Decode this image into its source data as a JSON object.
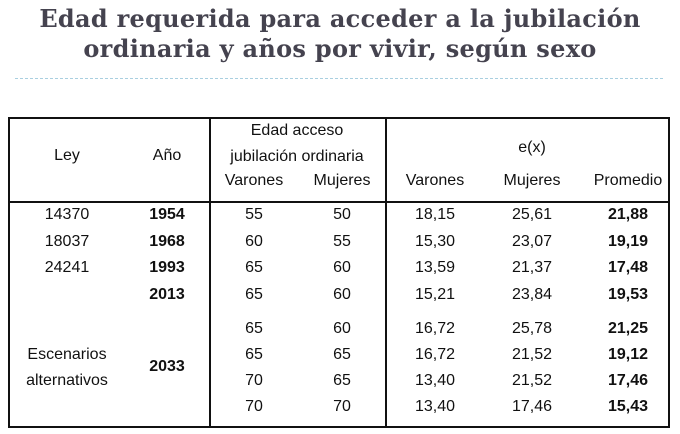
{
  "title": {
    "line1": "Edad requerida para acceder a la jubilación",
    "line2": "ordinaria y años por vivir, según sexo"
  },
  "header": {
    "ley": "Ley",
    "anio": "Año",
    "edad_line1": "Edad acceso",
    "edad_line2": "jubilación ordinaria",
    "edad_varones": "Varones",
    "edad_mujeres": "Mujeres",
    "ex": "e(x)",
    "ex_varones": "Varones",
    "ex_mujeres": "Mujeres",
    "ex_promedio": "Promedio"
  },
  "rows": [
    {
      "ley": "14370",
      "anio": "1954",
      "ev": "55",
      "em": "50",
      "xv": "18,15",
      "xm": "25,61",
      "xp": "21,88"
    },
    {
      "ley": "18037",
      "anio": "1968",
      "ev": "60",
      "em": "55",
      "xv": "15,30",
      "xm": "23,07",
      "xp": "19,19"
    },
    {
      "ley": "24241",
      "anio": "1993",
      "ev": "65",
      "em": "60",
      "xv": "13,59",
      "xm": "21,37",
      "xp": "17,48"
    },
    {
      "ley": "",
      "anio": "2013",
      "ev": "65",
      "em": "60",
      "xv": "15,21",
      "xm": "23,84",
      "xp": "19,53"
    },
    {
      "ley": "",
      "anio": "",
      "ev": "65",
      "em": "60",
      "xv": "16,72",
      "xm": "25,78",
      "xp": "21,25"
    },
    {
      "ley": "",
      "anio": "",
      "ev": "65",
      "em": "65",
      "xv": "16,72",
      "xm": "21,52",
      "xp": "19,12"
    },
    {
      "ley": "",
      "anio": "",
      "ev": "70",
      "em": "65",
      "xv": "13,40",
      "xm": "21,52",
      "xp": "17,46"
    },
    {
      "ley": "",
      "anio": "",
      "ev": "70",
      "em": "70",
      "xv": "13,40",
      "xm": "17,46",
      "xp": "15,43"
    }
  ],
  "scenarios": {
    "label_line1": "Escenarios",
    "label_line2": "alternativos",
    "anio": "2033"
  }
}
